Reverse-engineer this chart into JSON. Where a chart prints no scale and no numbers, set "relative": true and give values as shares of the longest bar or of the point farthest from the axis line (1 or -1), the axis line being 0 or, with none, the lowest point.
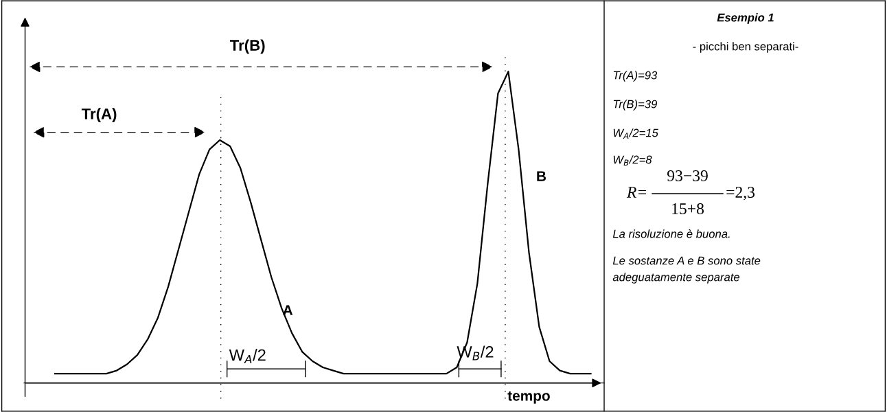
{
  "chart_data": [
    {
      "type": "line",
      "relative": true,
      "color": "#000000",
      "categories": [
        null,
        null,
        null,
        null,
        null,
        null,
        null,
        null,
        null,
        null,
        null,
        null,
        null,
        null,
        null,
        null,
        null,
        null,
        null,
        null,
        null,
        null,
        null,
        null,
        null,
        null,
        null,
        null,
        null,
        null,
        null,
        null,
        null,
        null,
        null,
        null,
        null,
        null,
        null,
        null,
        null,
        null,
        null,
        null,
        null,
        null,
        null,
        null,
        null,
        null,
        null,
        null,
        null
      ],
      "values": [
        0.03,
        0.03,
        0.03,
        0.03,
        0.03,
        0.03,
        0.04,
        0.06,
        0.09,
        0.14,
        0.21,
        0.31,
        0.43,
        0.55,
        0.67,
        0.75,
        0.78,
        0.76,
        0.69,
        0.58,
        0.46,
        0.34,
        0.24,
        0.16,
        0.1,
        0.07,
        0.05,
        0.04,
        0.03,
        0.03,
        0.03,
        0.03,
        0.03,
        0.03,
        0.03,
        0.03,
        0.03,
        0.03,
        0.03,
        0.05,
        0.13,
        0.32,
        0.64,
        0.93,
        1,
        0.75,
        0.42,
        0.18,
        0.07,
        0.04,
        0.03,
        0.03,
        0.03
      ],
      "annotations": [
        "Tr(B)",
        "Tr(A)",
        "W$_{A}$/2",
        "W$_{B}$/2",
        "A",
        "B",
        "tempo"
      ]
    },
    {
      "type": "other",
      "title": "Esempio 1",
      "annotations": [
        "- picchi ben separati-",
        "Tr(A)=93",
        "Tr(B)=39",
        "W$_{A}$/2=15",
        "W$_{B}$/2=8",
        "R=",
        "93−39",
        "15+8",
        "=2,3",
        "La risoluzione è buona.",
        "Le sostanze A e B sono state",
        "adeguatamente separate"
      ]
    }
  ]
}
